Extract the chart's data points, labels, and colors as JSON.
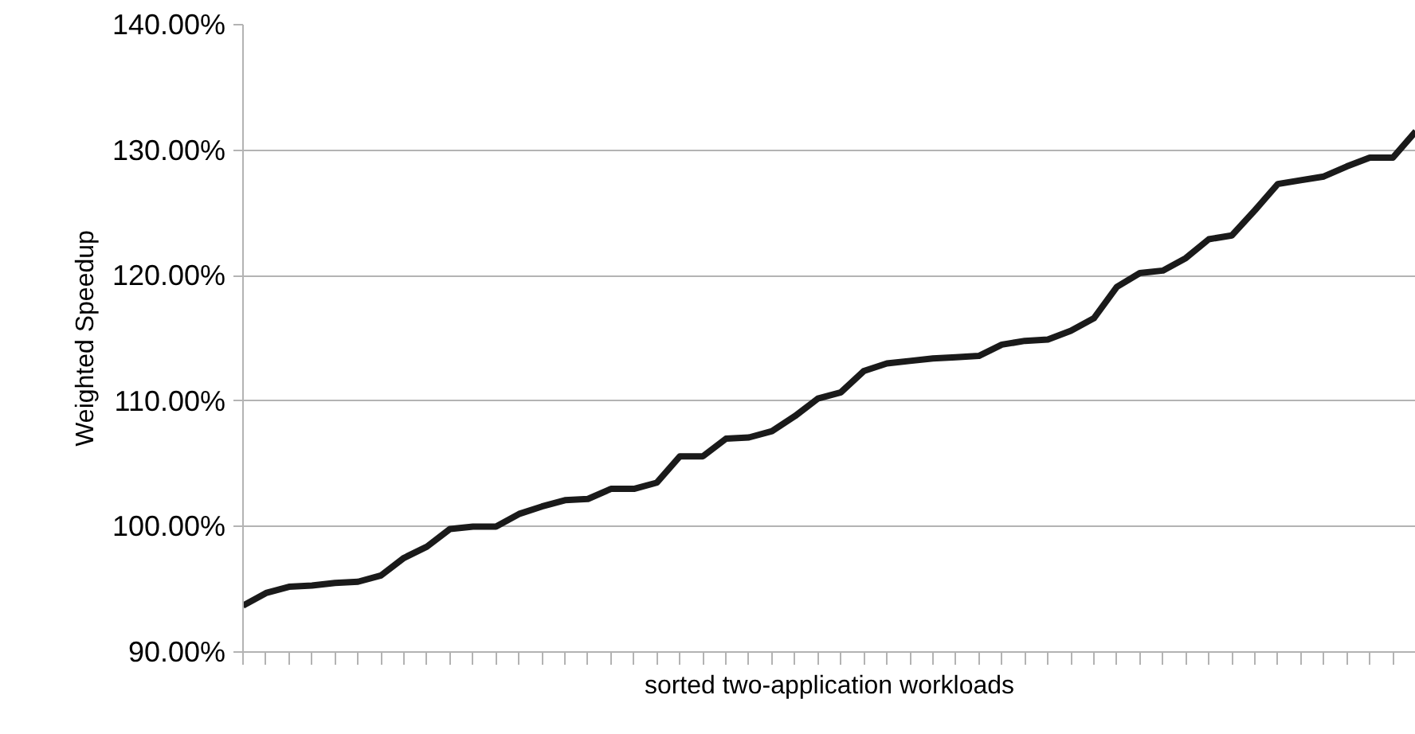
{
  "chart_data": {
    "type": "line",
    "xlabel": "sorted two-application workloads",
    "ylabel": "Weighted Speedup",
    "categories": [
      null,
      null,
      null,
      null,
      null,
      null,
      null,
      null,
      null,
      null,
      null,
      null,
      null,
      null,
      null,
      null,
      null,
      null,
      null,
      null,
      null,
      null,
      null,
      null,
      null,
      null,
      null,
      null,
      null,
      null,
      null,
      null,
      null,
      null,
      null,
      null,
      null,
      null,
      null,
      null,
      null,
      null,
      null,
      null,
      null,
      null,
      null,
      null,
      null,
      null,
      null,
      null
    ],
    "series": [
      {
        "color": "#1a1a1a",
        "values": [
          93.7,
          94.7,
          95.2,
          95.3,
          95.5,
          95.6,
          96.1,
          97.5,
          98.4,
          99.8,
          100.0,
          100.0,
          101.0,
          101.6,
          102.1,
          102.2,
          103.0,
          103.0,
          103.5,
          105.6,
          105.6,
          107.0,
          107.1,
          107.6,
          108.8,
          110.2,
          110.7,
          112.4,
          113.0,
          113.2,
          113.4,
          113.5,
          113.6,
          114.5,
          114.8,
          114.9,
          115.6,
          116.6,
          119.1,
          120.2,
          120.4,
          121.4,
          122.9,
          123.2,
          125.2,
          127.3,
          127.6,
          127.9,
          128.7,
          129.4,
          129.4,
          131.5
        ]
      }
    ],
    "ylim": [
      90,
      140
    ],
    "yticks": [
      {
        "value": 90,
        "label": "90.00%"
      },
      {
        "value": 100,
        "label": "100.00%"
      },
      {
        "value": 110,
        "label": "110.00%"
      },
      {
        "value": 120,
        "label": "120.00%"
      },
      {
        "value": 130,
        "label": "130.00%"
      },
      {
        "value": 140,
        "label": "140.00%"
      }
    ],
    "grid": "y",
    "marker": "none",
    "line_style": "solid"
  }
}
